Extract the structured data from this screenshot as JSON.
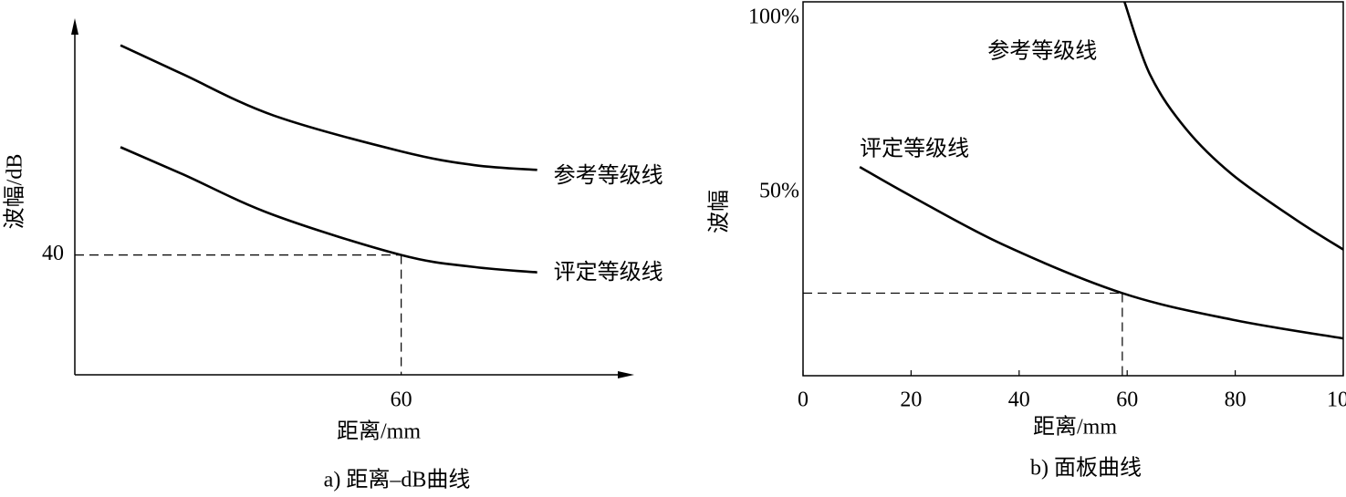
{
  "chart_data": [
    {
      "type": "line",
      "caption": "a) 距离–dB曲线",
      "x_label": "距离/mm",
      "y_label": "波幅/dB",
      "xlim": [
        0,
        102
      ],
      "xticks": [
        60
      ],
      "ylim": [
        20,
        78
      ],
      "yticks": [
        40
      ],
      "x": [
        8.4,
        19.8,
        36.5,
        60,
        73.4,
        85
      ],
      "series": [
        {
          "name": "参考等级线",
          "color": "#000000",
          "values": [
            75,
            70.2,
            63.3,
            57.3,
            55,
            54.2
          ]
        },
        {
          "name": "评定等级线",
          "color": "#000000",
          "values": [
            58,
            53.5,
            46.7,
            40,
            38,
            37.1
          ]
        }
      ],
      "reference": {
        "x": 60,
        "y": 40
      }
    },
    {
      "type": "line",
      "caption": "b) 面板曲线",
      "x_label": "距离/mm",
      "y_label": "波幅",
      "xlim": [
        0,
        100
      ],
      "xticks": [
        0,
        20,
        40,
        60,
        80,
        100
      ],
      "ylim": [
        -2.6,
        104.7
      ],
      "yticks": [
        {
          "value": 50,
          "label": "50%"
        },
        {
          "value": 100,
          "label": "100%"
        }
      ],
      "series": [
        {
          "name": "参考等级线",
          "color": "#000000",
          "x": [
            59.5,
            64.2,
            70.9,
            79.4,
            91.2,
            100
          ],
          "values": [
            104.7,
            83.9,
            68.2,
            55.2,
            42.2,
            33.6
          ]
        },
        {
          "name": "评定等级线",
          "color": "#000000",
          "x": [
            10.5,
            20.3,
            37.2,
            59.1,
            79.4,
            100
          ],
          "values": [
            57.3,
            48.7,
            34.9,
            21.1,
            13.5,
            8.1
          ]
        }
      ],
      "reference": {
        "x": 59.1,
        "y": 21.1
      }
    }
  ]
}
